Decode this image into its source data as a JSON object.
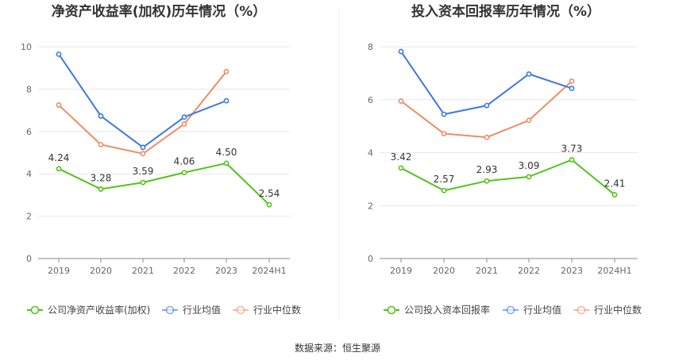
{
  "source_label": "数据来源：恒生聚源",
  "chart_data": [
    {
      "type": "line",
      "title": "净资产收益率(加权)历年情况（%）",
      "categories": [
        "2019",
        "2020",
        "2021",
        "2022",
        "2023",
        "2024H1"
      ],
      "ylim": [
        0,
        10
      ],
      "yticks": [
        "0",
        "2",
        "4",
        "6",
        "8",
        "10"
      ],
      "grid": true,
      "legend_position": "bottom",
      "series": [
        {
          "name": "公司净资产收益率(加权)",
          "color": "#52c41a",
          "values": [
            4.24,
            3.28,
            3.59,
            4.06,
            4.5,
            2.54
          ],
          "labels": [
            "4.24",
            "3.28",
            "3.59",
            "4.06",
            "4.50",
            "2.54"
          ]
        },
        {
          "name": "行业均值",
          "color": "#3b78e7",
          "values": [
            9.65,
            6.73,
            5.25,
            6.68,
            7.45,
            null
          ]
        },
        {
          "name": "行业中位数",
          "color": "#f08c64",
          "values": [
            7.25,
            5.38,
            4.95,
            6.35,
            8.83,
            null
          ]
        }
      ]
    },
    {
      "type": "line",
      "title": "投入资本回报率历年情况（%）",
      "categories": [
        "2019",
        "2020",
        "2021",
        "2022",
        "2023",
        "2024H1"
      ],
      "ylim": [
        0,
        8
      ],
      "yticks": [
        "0",
        "2",
        "4",
        "6",
        "8"
      ],
      "grid": true,
      "legend_position": "bottom",
      "series": [
        {
          "name": "公司投入资本回报率",
          "color": "#52c41a",
          "values": [
            3.42,
            2.57,
            2.93,
            3.09,
            3.73,
            2.41
          ],
          "labels": [
            "3.42",
            "2.57",
            "2.93",
            "3.09",
            "3.73",
            "2.41"
          ]
        },
        {
          "name": "行业均值",
          "color": "#3b78e7",
          "values": [
            7.82,
            5.45,
            5.78,
            6.97,
            6.43,
            null
          ]
        },
        {
          "name": "行业中位数",
          "color": "#f08c64",
          "values": [
            5.95,
            4.72,
            4.58,
            5.22,
            6.7,
            null
          ]
        }
      ]
    }
  ]
}
